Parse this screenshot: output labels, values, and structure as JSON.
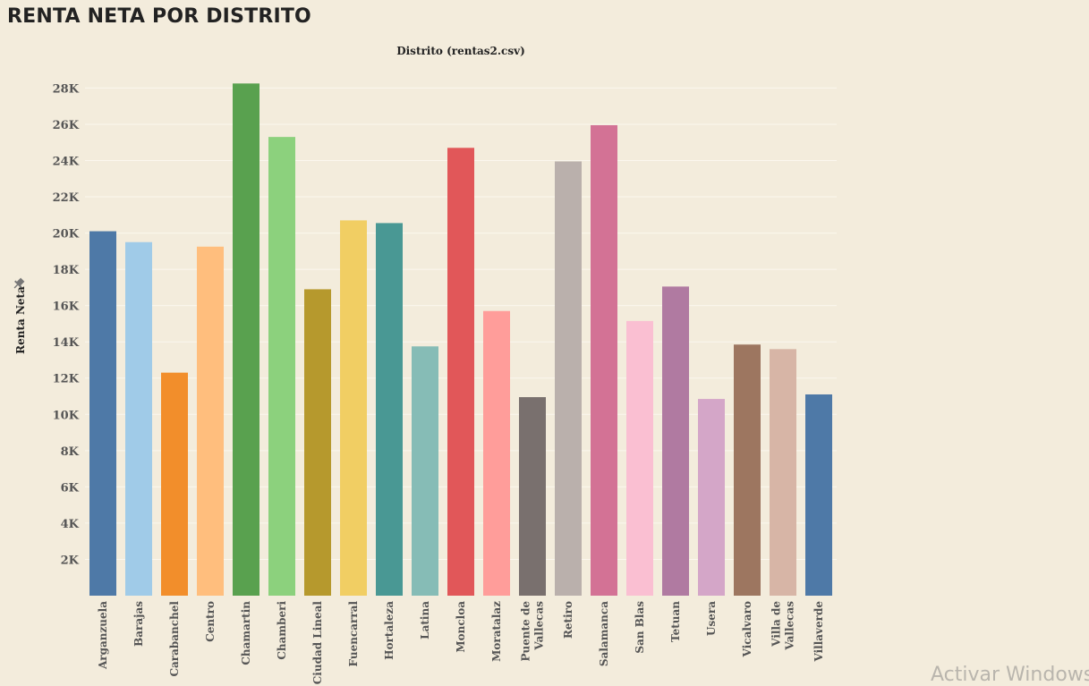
{
  "page": {
    "title": "RENTA NETA POR DISTRITO",
    "watermark": "Activar Windows"
  },
  "icons": {
    "ylabel_pin": "pin-icon"
  },
  "chart_data": {
    "type": "bar",
    "title": "Distrito (rentas2.csv)",
    "xlabel": "",
    "ylabel": "Renta Neta",
    "ylim": [
      0,
      29500
    ],
    "grid": true,
    "legend": "none",
    "y_ticks": [
      {
        "value": 2000,
        "label": "2K"
      },
      {
        "value": 4000,
        "label": "4K"
      },
      {
        "value": 6000,
        "label": "6K"
      },
      {
        "value": 8000,
        "label": "8K"
      },
      {
        "value": 10000,
        "label": "10K"
      },
      {
        "value": 12000,
        "label": "12K"
      },
      {
        "value": 14000,
        "label": "14K"
      },
      {
        "value": 16000,
        "label": "16K"
      },
      {
        "value": 18000,
        "label": "18K"
      },
      {
        "value": 20000,
        "label": "20K"
      },
      {
        "value": 22000,
        "label": "22K"
      },
      {
        "value": 24000,
        "label": "24K"
      },
      {
        "value": 26000,
        "label": "26K"
      },
      {
        "value": 28000,
        "label": "28K"
      }
    ],
    "categories": [
      [
        "Arganzuela"
      ],
      [
        "Barajas"
      ],
      [
        "Carabanchel"
      ],
      [
        "Centro"
      ],
      [
        "Chamartin"
      ],
      [
        "Chamberi"
      ],
      [
        "Ciudad Lineal"
      ],
      [
        "Fuencarral"
      ],
      [
        "Hortaleza"
      ],
      [
        "Latina"
      ],
      [
        "Moncloa"
      ],
      [
        "Moratalaz"
      ],
      [
        "Puente de",
        "Vallecas"
      ],
      [
        "Retiro"
      ],
      [
        "Salamanca"
      ],
      [
        "San Blas"
      ],
      [
        "Tetuan"
      ],
      [
        "Usera"
      ],
      [
        "Vicalvaro"
      ],
      [
        "Villa de",
        "Vallecas"
      ],
      [
        "Villaverde"
      ]
    ],
    "values": [
      20100,
      19500,
      12300,
      19250,
      28250,
      25300,
      16900,
      20700,
      20550,
      13750,
      24700,
      15700,
      10950,
      23950,
      25950,
      15150,
      17050,
      10850,
      13850,
      13600,
      11100
    ],
    "colors": [
      "#4e79a7",
      "#a0cbe8",
      "#f28e2b",
      "#ffbe7d",
      "#59a14f",
      "#8cd17d",
      "#b6992d",
      "#f1ce63",
      "#499894",
      "#86bcb6",
      "#e15759",
      "#ff9d9a",
      "#79706e",
      "#bab0ac",
      "#d37295",
      "#fabfd2",
      "#b07aa1",
      "#d4a6c8",
      "#9d7660",
      "#d7b5a6",
      "#4e79a7"
    ]
  }
}
